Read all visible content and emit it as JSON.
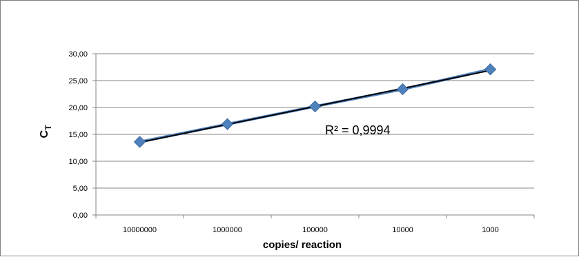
{
  "chart_data": {
    "type": "scatter",
    "title": "",
    "xlabel": "copies/ reaction",
    "ylabel_main": "C",
    "ylabel_sub": "T",
    "categories": [
      "10000000",
      "1000000",
      "100000",
      "10000",
      "1000"
    ],
    "x": [
      10000000,
      1000000,
      100000,
      10000,
      1000
    ],
    "x_scale": "log",
    "x_reversed": true,
    "series": [
      {
        "name": "",
        "values": [
          13.6,
          16.9,
          20.2,
          23.4,
          27.1
        ]
      }
    ],
    "trendline": {
      "type": "linear",
      "start": 13.5,
      "end": 26.9
    },
    "ylim": [
      0,
      30
    ],
    "y_ticks": [
      "0,00",
      "5,00",
      "10,00",
      "15,00",
      "20,00",
      "25,00",
      "30,00"
    ],
    "y_tick_values": [
      0,
      5,
      10,
      15,
      20,
      25,
      30
    ],
    "annotation": "R² = 0,9994",
    "grid": "horizontal",
    "legend": "none",
    "colors": {
      "marker": "#4f81bd",
      "marker_edge": "#3c6a9e",
      "trendline": "#000000",
      "grid": "#868686",
      "axis": "#868686"
    }
  }
}
